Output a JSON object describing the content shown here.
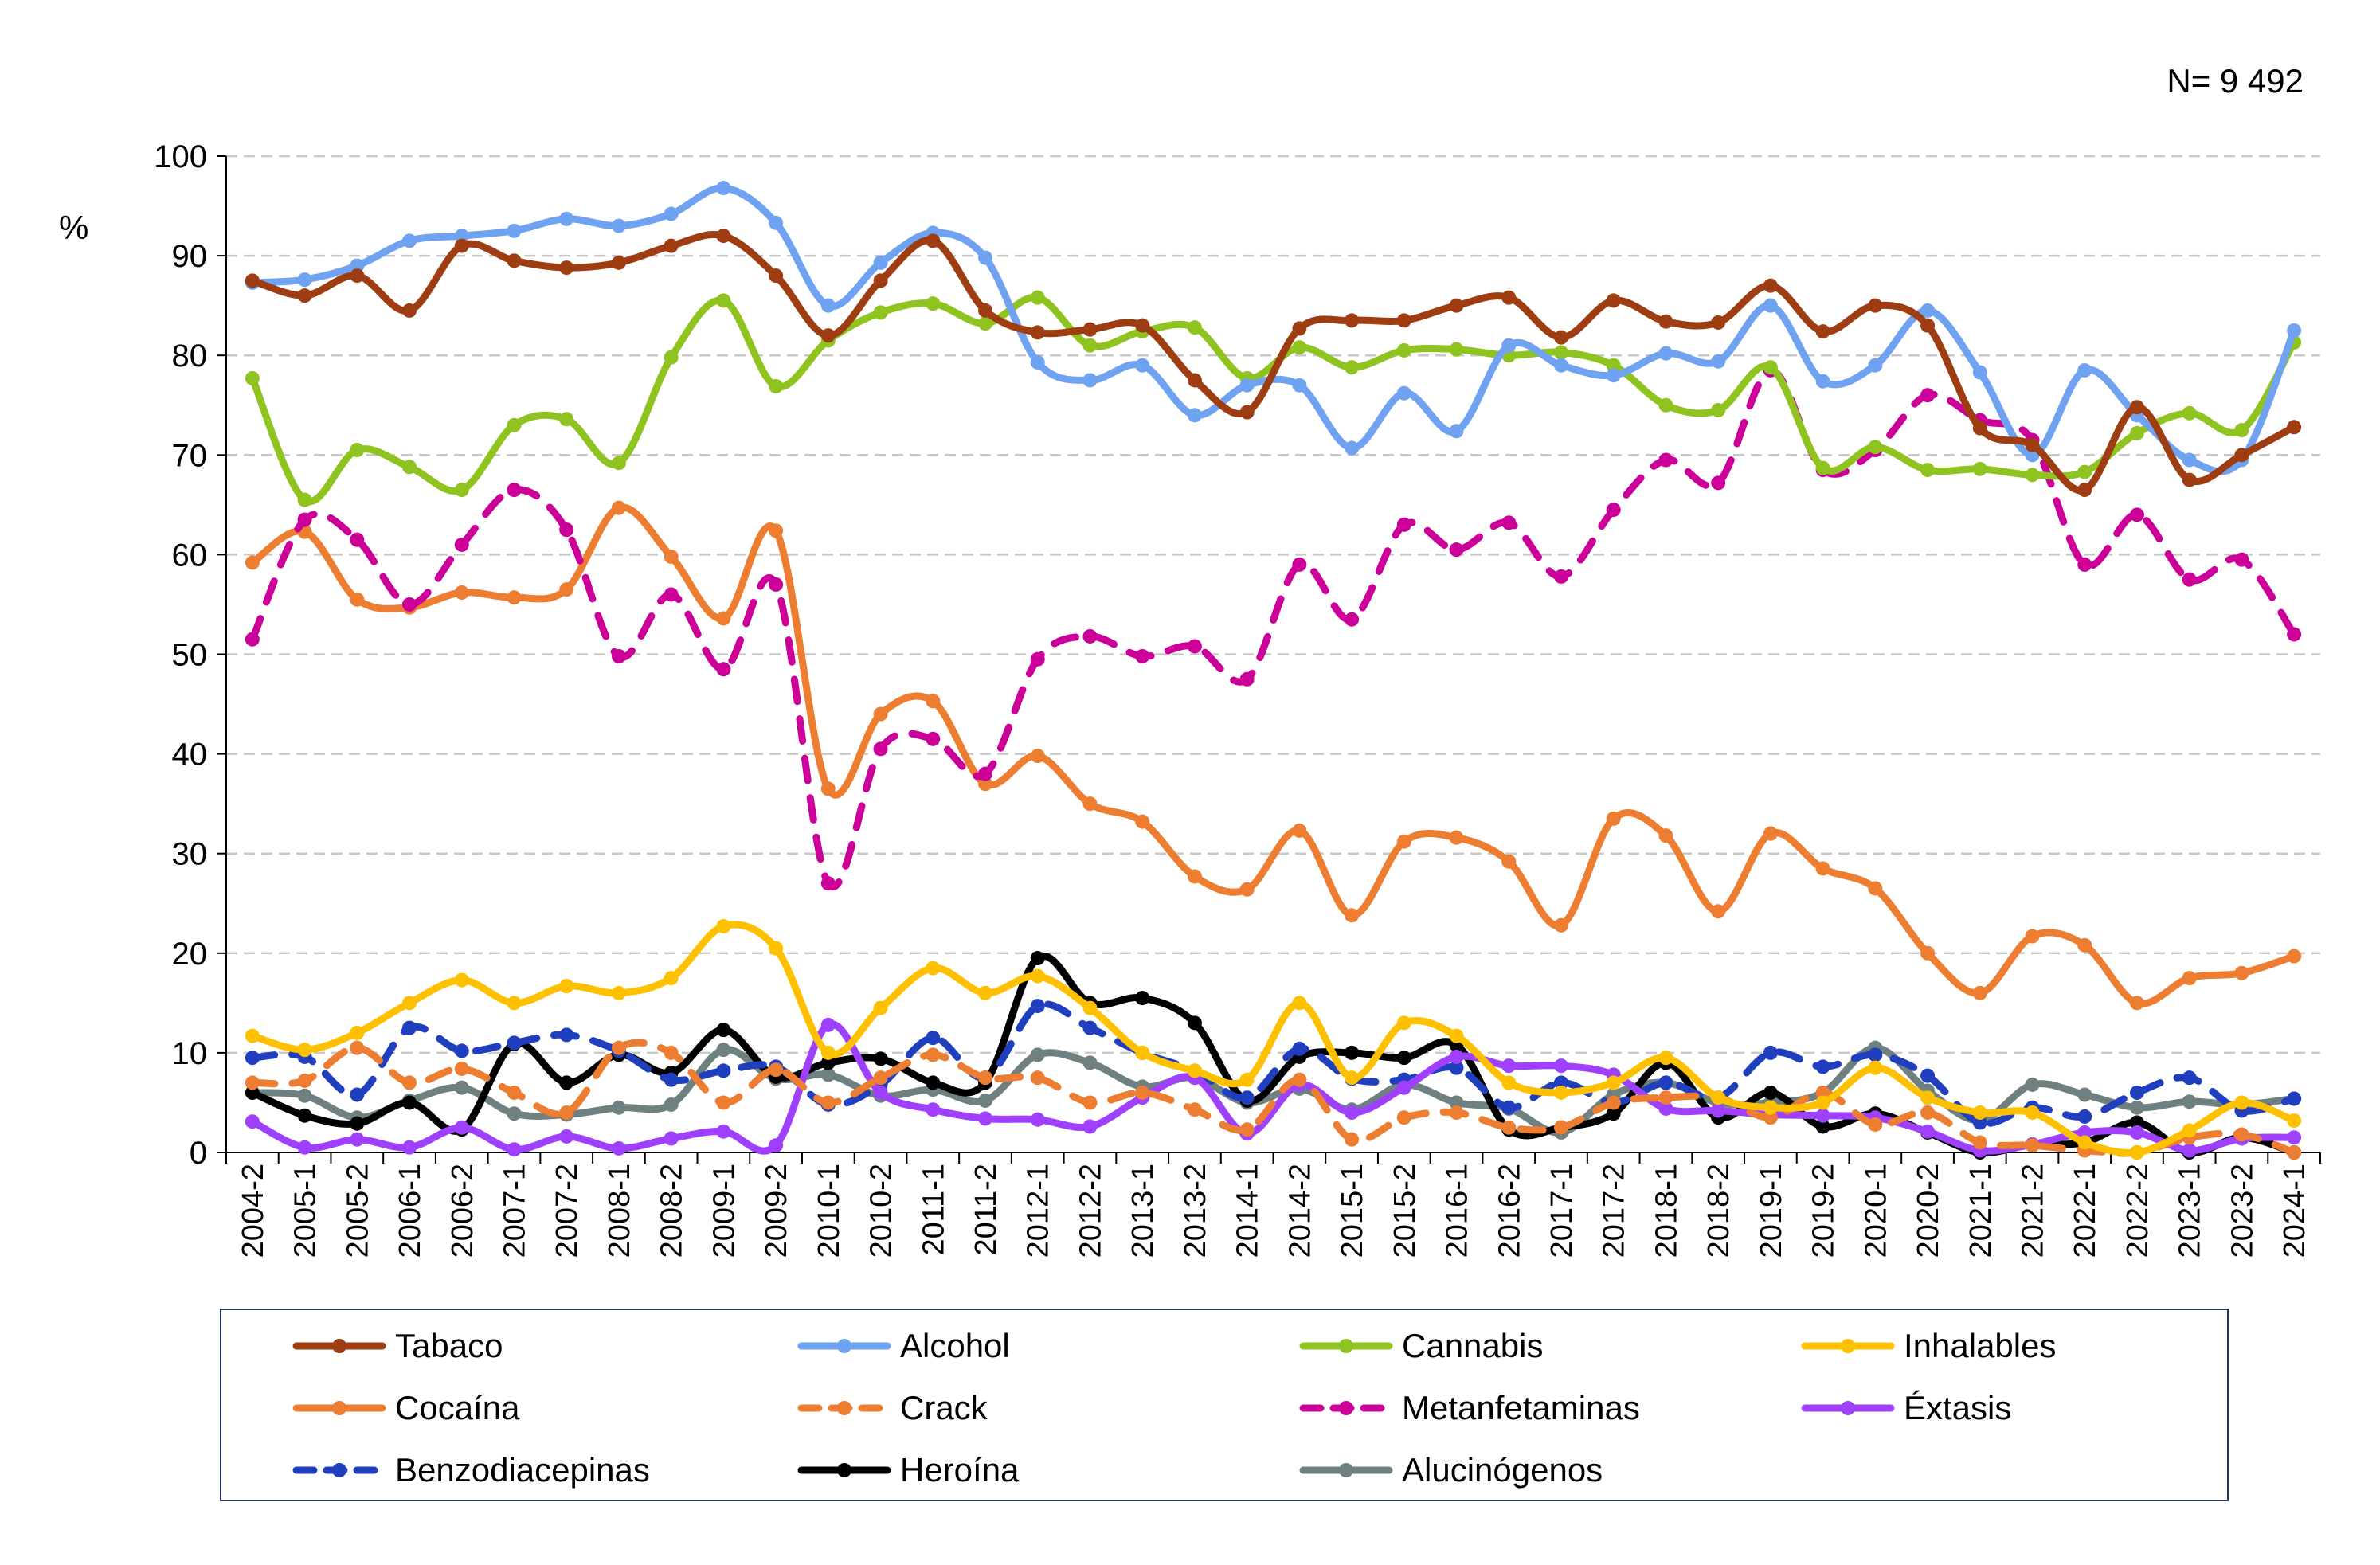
{
  "sample_size": "N= 9 492",
  "chart_data": {
    "type": "line",
    "title": "",
    "xlabel": "",
    "ylabel": "%",
    "ylim": [
      0,
      100
    ],
    "yticks": [
      0,
      10,
      20,
      30,
      40,
      50,
      60,
      70,
      80,
      90,
      100
    ],
    "grid": "horizontal dashed",
    "legend_position": "bottom",
    "categories": [
      "2004-2",
      "2005-1",
      "2005-2",
      "2006-1",
      "2006-2",
      "2007-1",
      "2007-2",
      "2008-1",
      "2008-2",
      "2009-1",
      "2009-2",
      "2010-1",
      "2010-2",
      "2011-1",
      "2011-2",
      "2012-1",
      "2012-2",
      "2013-1",
      "2013-2",
      "2014-1",
      "2014-2",
      "2015-1",
      "2015-2",
      "2016-1",
      "2016-2",
      "2017-1",
      "2017-2",
      "2018-1",
      "2018-2",
      "2019-1",
      "2019-2",
      "2020-1",
      "2020-2",
      "2021-1",
      "2021-2",
      "2022-1",
      "2022-2",
      "2023-1",
      "2023-2",
      "2024-1"
    ],
    "series": [
      {
        "name": "Tabaco",
        "color": "#9e3d12",
        "dash": "solid",
        "values": [
          87.5,
          86,
          88,
          84.5,
          91,
          89.5,
          88.8,
          89.3,
          91,
          92,
          88,
          82,
          87.5,
          91.5,
          84.5,
          82.3,
          82.6,
          83,
          77.5,
          74.3,
          82.7,
          83.5,
          83.5,
          85,
          85.8,
          81.8,
          85.5,
          83.4,
          83.3,
          87,
          82.4,
          85,
          83,
          72.7,
          71,
          66.5,
          74.8,
          67.5,
          70,
          72.8
        ]
      },
      {
        "name": "Alcohol",
        "color": "#6fa2f0",
        "dash": "solid",
        "values": [
          87.3,
          87.6,
          89,
          91.5,
          92,
          92.5,
          93.7,
          93,
          94.2,
          96.8,
          93.3,
          85,
          89.3,
          92.3,
          89.8,
          79.3,
          77.5,
          79,
          74,
          77,
          77,
          70.7,
          76.2,
          72.4,
          81,
          79,
          78,
          80.2,
          79.4,
          85,
          77.4,
          79,
          84.5,
          78.3,
          70,
          78.5,
          74,
          69.5,
          69.5,
          82.5
        ]
      },
      {
        "name": "Cannabis",
        "color": "#8fc31f",
        "dash": "solid",
        "values": [
          77.7,
          65.5,
          70.5,
          68.8,
          66.5,
          73,
          73.6,
          69.2,
          79.8,
          85.5,
          76.9,
          81.5,
          84.3,
          85.2,
          83.2,
          85.8,
          81,
          82.4,
          82.8,
          77.7,
          80.8,
          78.8,
          80.5,
          80.6,
          80,
          80.3,
          79,
          75,
          74.5,
          78.8,
          68.7,
          70.8,
          68.5,
          68.6,
          68,
          68.3,
          72.2,
          74.2,
          72.5,
          81.3
        ]
      },
      {
        "name": "Inhalables",
        "color": "#ffc000",
        "dash": "solid",
        "values": [
          11.7,
          10.3,
          12,
          15,
          17.3,
          15,
          16.7,
          16,
          17.5,
          22.7,
          20.5,
          10,
          14.5,
          18.5,
          16,
          17.7,
          14.5,
          10,
          8.2,
          7.3,
          15,
          7.5,
          13,
          11.7,
          7,
          6,
          7,
          9.5,
          5.5,
          4.5,
          5,
          8.5,
          5.5,
          4,
          4,
          1,
          0,
          2.2,
          5,
          3.2
        ]
      },
      {
        "name": "Cocaína",
        "color": "#ed7d31",
        "dash": "solid",
        "values": [
          59.2,
          62.3,
          55.5,
          54.7,
          56.2,
          55.7,
          56.5,
          64.7,
          59.8,
          53.6,
          62.4,
          36.5,
          44,
          45.3,
          37,
          39.8,
          35,
          33.2,
          27.7,
          26.4,
          32.3,
          23.8,
          31.2,
          31.6,
          29.2,
          22.8,
          33.5,
          31.8,
          24.2,
          32,
          28.5,
          26.5,
          20,
          16,
          21.7,
          20.8,
          15,
          17.5,
          18,
          19.7
        ]
      },
      {
        "name": "Crack",
        "color": "#ed7d31",
        "dash": "dash",
        "values": [
          7,
          7.2,
          10.5,
          7,
          8.4,
          6,
          4,
          10.5,
          10,
          5,
          8.3,
          5,
          7.5,
          9.8,
          7.5,
          7.5,
          5,
          6,
          4.3,
          2.3,
          7.3,
          1.3,
          3.5,
          4,
          2.5,
          2.5,
          5,
          5.5,
          5.5,
          3.5,
          6,
          2.8,
          4,
          1,
          0.7,
          0.2,
          0,
          1.5,
          1.8,
          0
        ]
      },
      {
        "name": "Metanfetaminas",
        "color": "#cc0099",
        "dash": "dash",
        "values": [
          51.5,
          63.5,
          61.5,
          55,
          61,
          66.5,
          62.5,
          49.8,
          56,
          48.5,
          57,
          27,
          40.5,
          41.5,
          38,
          49.5,
          51.8,
          49.8,
          50.8,
          47.5,
          59,
          53.5,
          63,
          60.5,
          63.2,
          57.8,
          64.5,
          69.5,
          67.2,
          78.5,
          68.5,
          70.5,
          76,
          73.5,
          71.5,
          59,
          64,
          57.5,
          59.5,
          52
        ]
      },
      {
        "name": "Éxtasis",
        "color": "#a040ff",
        "dash": "solid",
        "values": [
          3.1,
          0.5,
          1.3,
          0.5,
          2.5,
          0.3,
          1.6,
          0.4,
          1.4,
          2.1,
          0.7,
          12.8,
          6,
          4.3,
          3.4,
          3.3,
          2.6,
          5.5,
          7.5,
          1.9,
          6.8,
          4,
          6.5,
          9.6,
          8.7,
          8.7,
          7.8,
          4.4,
          4.2,
          3.8,
          3.7,
          3.5,
          2.1,
          0.2,
          0.8,
          2,
          2,
          0.2,
          1.4,
          1.5
        ]
      },
      {
        "name": "Benzodiacepinas",
        "color": "#1f3fbf",
        "dash": "dash",
        "values": [
          9.5,
          9.6,
          5.8,
          12.5,
          10.2,
          11,
          11.8,
          10.2,
          7.3,
          8.2,
          8.6,
          4.8,
          6.8,
          11.5,
          7.5,
          14.7,
          12.5,
          10,
          8.2,
          5.5,
          10.4,
          7.4,
          7.3,
          8.5,
          4.5,
          7,
          5,
          7,
          5.5,
          10,
          8.6,
          9.8,
          7.7,
          3,
          4.5,
          3.6,
          6,
          7.5,
          4.2,
          5.4
        ]
      },
      {
        "name": "Heroína",
        "color": "#000000",
        "dash": "solid",
        "values": [
          6,
          3.7,
          2.9,
          5,
          2.3,
          10.9,
          7,
          9.8,
          8,
          12.3,
          7.6,
          9,
          9.4,
          7,
          7,
          19.5,
          15,
          15.5,
          13,
          5.2,
          9.6,
          10,
          9.5,
          10.8,
          2.3,
          2.5,
          3.9,
          9,
          3.5,
          6,
          2.6,
          3.9,
          2,
          0,
          0.8,
          1,
          3,
          0,
          1.5,
          0
        ]
      },
      {
        "name": "Alucinógenos",
        "color": "#6f8080",
        "dash": "solid",
        "values": [
          6,
          5.7,
          3.5,
          5.2,
          6.5,
          3.9,
          3.8,
          4.5,
          4.8,
          10.3,
          7.4,
          7.8,
          5.7,
          6.3,
          5.2,
          9.8,
          9,
          6.6,
          7.5,
          5,
          6.4,
          4.3,
          6.8,
          5,
          4.4,
          2,
          5.8,
          7,
          5,
          5,
          6,
          10.5,
          6.2,
          3.2,
          6.8,
          5.8,
          4.5,
          5.1,
          4.8,
          5.4
        ]
      }
    ]
  }
}
